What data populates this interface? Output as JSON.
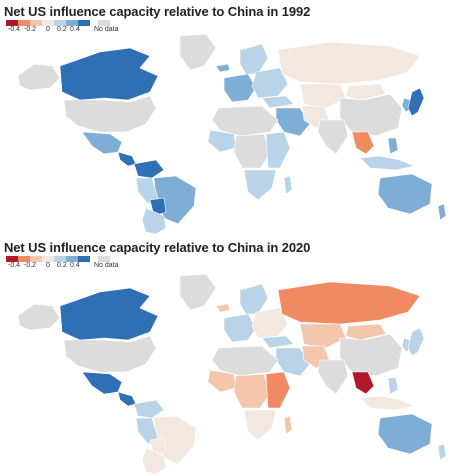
{
  "colors": {
    "neg04": "#b2182b",
    "neg02": "#ef8a62",
    "neg01": "#f4c6ac",
    "zero": "#f3e8e0",
    "pos01": "#b9d3e8",
    "pos02": "#7eaed6",
    "pos04": "#2f6fb3",
    "nodata": "#dcdcdc"
  },
  "legend": {
    "ticks": [
      "-0.4",
      "-0.2",
      "0",
      "0.2",
      "0.4"
    ],
    "nodata_label": "No data"
  },
  "maps": [
    {
      "id": "1992",
      "title": "Net US influence capacity relative to China in 1992",
      "regions": {
        "canada": "pos04",
        "usa": "nodata",
        "alaska": "nodata",
        "greenland": "nodata",
        "mexico": "pos02",
        "central_america": "pos04",
        "colombia_venezuela": "pos04",
        "brazil": "pos02",
        "peru": "pos01",
        "bolivia": "pos04",
        "argentina_chile": "pos01",
        "iceland": "pos02",
        "west_europe": "pos02",
        "scandinavia": "pos01",
        "east_europe": "pos01",
        "russia": "zero",
        "central_asia": "zero",
        "turkey": "pos01",
        "middle_east": "pos02",
        "iran": "zero",
        "north_africa": "nodata",
        "west_africa": "pos01",
        "central_africa": "nodata",
        "east_africa": "pos01",
        "south_africa": "pos01",
        "madagascar": "pos01",
        "india": "nodata",
        "china": "nodata",
        "mongolia": "zero",
        "japan": "pos04",
        "korea": "pos02",
        "se_asia": "neg02",
        "philippines": "pos02",
        "indonesia": "pos01",
        "australia": "pos02",
        "new_zealand": "pos02"
      }
    },
    {
      "id": "2020",
      "title": "Net US influence capacity relative to China in 2020",
      "regions": {
        "canada": "pos04",
        "usa": "nodata",
        "alaska": "nodata",
        "greenland": "nodata",
        "mexico": "pos04",
        "central_america": "pos04",
        "colombia_venezuela": "pos01",
        "brazil": "zero",
        "peru": "pos01",
        "bolivia": "zero",
        "argentina_chile": "zero",
        "iceland": "neg01",
        "west_europe": "pos01",
        "scandinavia": "pos01",
        "east_europe": "zero",
        "russia": "neg02",
        "central_asia": "neg01",
        "turkey": "pos01",
        "middle_east": "pos01",
        "iran": "neg01",
        "north_africa": "nodata",
        "west_africa": "neg01",
        "central_africa": "neg01",
        "east_africa": "neg02",
        "south_africa": "zero",
        "madagascar": "neg01",
        "india": "nodata",
        "china": "nodata",
        "mongolia": "neg01",
        "japan": "pos01",
        "korea": "pos01",
        "se_asia": "neg04",
        "philippines": "pos01",
        "indonesia": "zero",
        "australia": "pos02",
        "new_zealand": "pos01"
      }
    }
  ]
}
